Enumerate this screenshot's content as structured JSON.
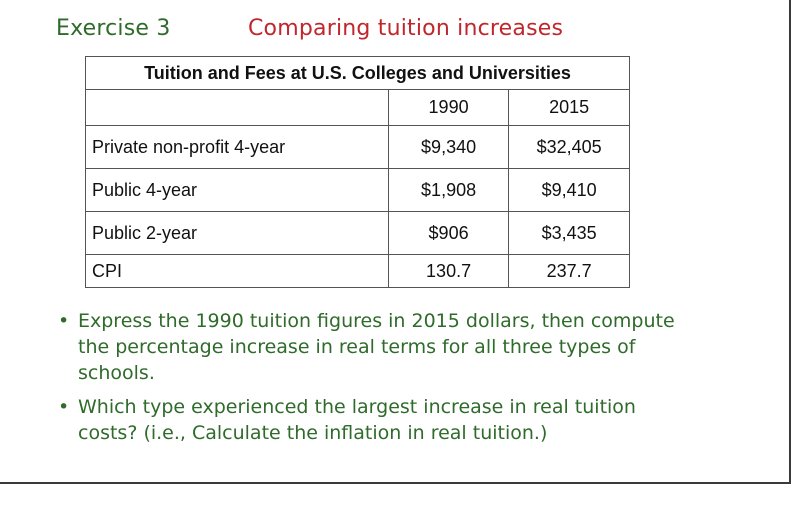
{
  "slide": {
    "label": "Exercise 3",
    "title": "Comparing tuition increases"
  },
  "table": {
    "caption": "Tuition and Fees at U.S. Colleges and Universities",
    "headers": [
      "",
      "1990",
      "2015"
    ],
    "rows": [
      {
        "label": "Private non-profit 4-year",
        "v1990": "$9,340",
        "v2015": "$32,405"
      },
      {
        "label": "Public 4-year",
        "v1990": "$1,908",
        "v2015": "$9,410"
      },
      {
        "label": "Public 2-year",
        "v1990": "$906",
        "v2015": "$3,435"
      },
      {
        "label": "CPI",
        "v1990": "130.7",
        "v2015": "237.7"
      }
    ]
  },
  "bullets": [
    "Express the 1990 tuition figures in 2015 dollars, then compute the percentage increase in real terms for all three types of schools.",
    "Which type experienced the largest increase in real tuition costs? (i.e., Calculate the inflation in real tuition.)"
  ],
  "colors": {
    "label_green": "#2f6b2a",
    "title_red": "#c0262b",
    "border_gray": "#555555"
  }
}
